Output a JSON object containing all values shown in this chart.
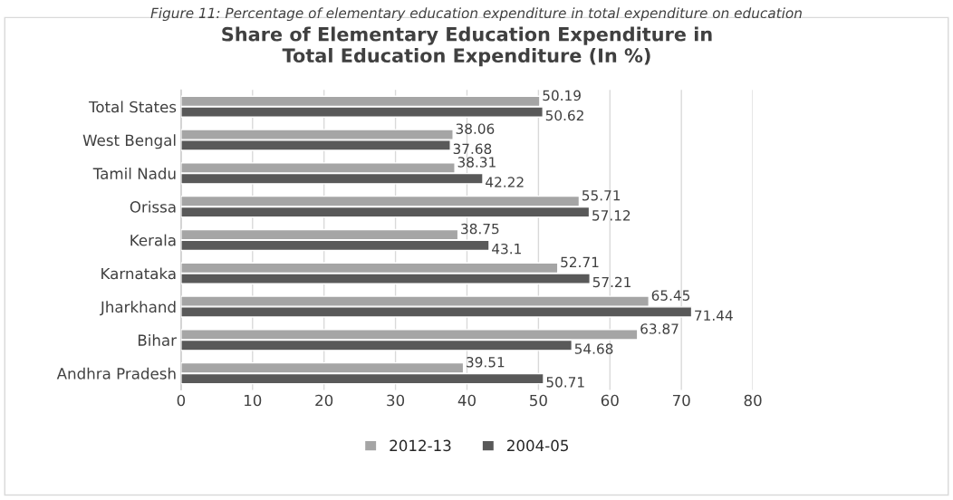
{
  "chart_data": {
    "type": "bar",
    "orientation": "horizontal",
    "title": "Share of Elementary Education Expenditure in\nTotal Education Expenditure (In %)",
    "annotations": [
      "Figure 11: Percentage of elementary education expenditure in total expenditure on education"
    ],
    "categories": [
      "Total States",
      "West Bengal",
      "Tamil Nadu",
      "Orissa",
      "Kerala",
      "Karnataka",
      "Jharkhand",
      "Bihar",
      "Andhra Pradesh"
    ],
    "series": [
      {
        "name": "2012-13",
        "color": "#a5a5a5",
        "values": [
          50.19,
          38.06,
          38.31,
          55.71,
          38.75,
          52.71,
          65.45,
          63.87,
          39.51
        ]
      },
      {
        "name": "2004-05",
        "color": "#595959",
        "values": [
          50.62,
          37.68,
          42.22,
          57.12,
          43.1,
          57.21,
          71.44,
          54.68,
          50.71
        ]
      }
    ],
    "xlim": [
      0,
      80
    ],
    "xticks": [
      0,
      10,
      20,
      30,
      40,
      50,
      60,
      70,
      80
    ],
    "grid": "x",
    "legend": "bottom",
    "data_labels": true
  }
}
